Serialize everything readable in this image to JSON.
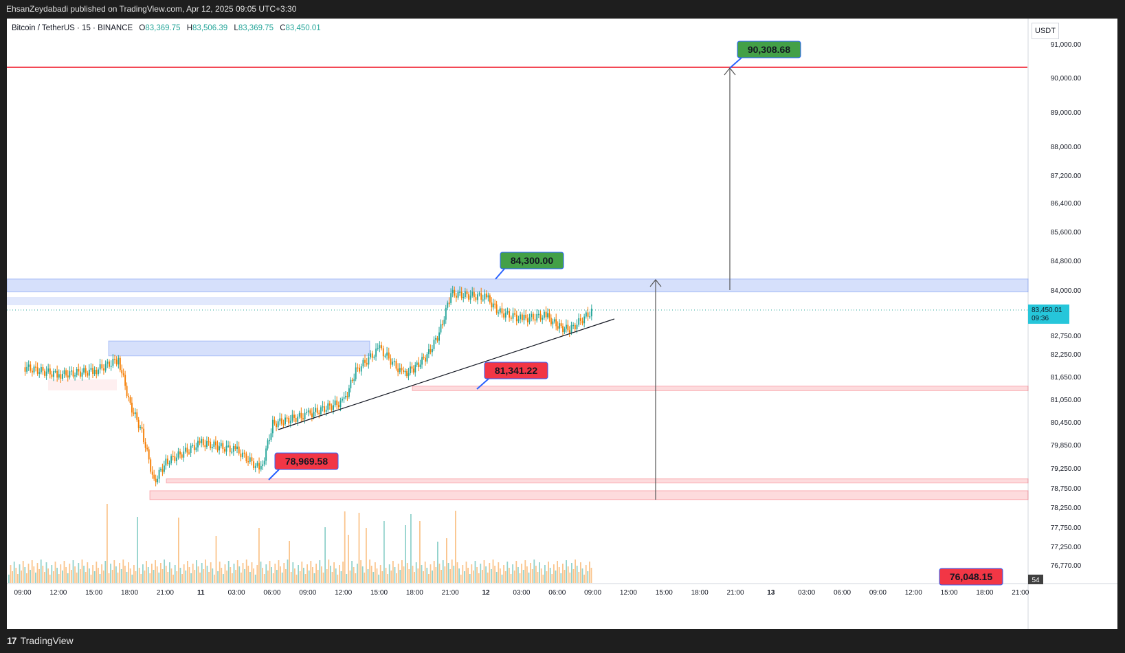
{
  "header": {
    "publish_line": "EhsanZeydabadi published on TradingView.com, Apr 12, 2025 09:05 UTC+3:30"
  },
  "legend": {
    "symbol": "Bitcoin / TetherUS · 15 · BINANCE",
    "open_label": "O",
    "open": "83,369.75",
    "high_label": "H",
    "high": "83,506.39",
    "low_label": "L",
    "low": "83,369.75",
    "close_label": "C",
    "close": "83,450.01"
  },
  "axis_unit": "USDT",
  "footer": {
    "brand": "TradingView",
    "logo": "17"
  },
  "chart_data": {
    "type": "candlestick",
    "symbol": "Bitcoin / TetherUS",
    "interval": "15",
    "exchange": "BINANCE",
    "y_ticks": [
      "91,000.00",
      "90,000.00",
      "89,000.00",
      "88,000.00",
      "87,200.00",
      "86,400.00",
      "85,600.00",
      "84,800.00",
      "84,000.00",
      "82,750.00",
      "82,250.00",
      "81,650.00",
      "81,050.00",
      "80,450.00",
      "79,850.00",
      "79,250.00",
      "78,750.00",
      "78,250.00",
      "77,750.00",
      "77,250.00",
      "76,770.00"
    ],
    "x_ticks": [
      "09:00",
      "12:00",
      "15:00",
      "18:00",
      "21:00",
      "11",
      "03:00",
      "06:00",
      "09:00",
      "12:00",
      "15:00",
      "18:00",
      "21:00",
      "12",
      "03:00",
      "06:00",
      "09:00",
      "12:00",
      "15:00",
      "18:00",
      "21:00",
      "13",
      "03:00",
      "06:00",
      "09:00",
      "12:00",
      "15:00",
      "18:00",
      "21:00"
    ],
    "x_ticks_bold": [
      "11",
      "12",
      "13"
    ],
    "current_price": {
      "value": "83,450.01",
      "countdown": "09:36"
    },
    "volume_badge": "54",
    "price_labels": [
      {
        "text": "90,308.68",
        "color": "#43a047"
      },
      {
        "text": "84,300.00",
        "color": "#43a047"
      },
      {
        "text": "81,341.22",
        "color": "#f23645"
      },
      {
        "text": "78,969.58",
        "color": "#f23645"
      },
      {
        "text": "76,048.15",
        "color": "#f23645"
      }
    ],
    "resistance_line": 90308.68,
    "zones": [
      {
        "from": 83950,
        "to": 84300,
        "color": "blue"
      },
      {
        "from": 82200,
        "to": 82600,
        "color": "blue"
      },
      {
        "from": 81280,
        "to": 81400,
        "color": "red"
      },
      {
        "from": 78880,
        "to": 78980,
        "color": "red"
      },
      {
        "from": 78450,
        "to": 78680,
        "color": "red"
      }
    ],
    "close_path": [
      [
        "09:00",
        81900
      ],
      [
        "12:00",
        81700
      ],
      [
        "15:00",
        81800
      ],
      [
        "17:00",
        82100
      ],
      [
        "18:00",
        80900
      ],
      [
        "19:00",
        80200
      ],
      [
        "20:00",
        78900
      ],
      [
        "21:00",
        79400
      ],
      [
        "00:00",
        79900
      ],
      [
        "03:00",
        79700
      ],
      [
        "05:00",
        79200
      ],
      [
        "06:00",
        80400
      ],
      [
        "09:00",
        80650
      ],
      [
        "12:00",
        81000
      ],
      [
        "13:00",
        81800
      ],
      [
        "15:00",
        82400
      ],
      [
        "17:00",
        81700
      ],
      [
        "18:00",
        81900
      ],
      [
        "19:00",
        82200
      ],
      [
        "20:00",
        82800
      ],
      [
        "21:00",
        83900
      ],
      [
        "00:00",
        83800
      ],
      [
        "01:00",
        83400
      ],
      [
        "03:00",
        83200
      ],
      [
        "05:00",
        83300
      ],
      [
        "06:00",
        83000
      ],
      [
        "07:00",
        82900
      ],
      [
        "09:00",
        83450
      ]
    ],
    "colors": {
      "up": "#26a69a",
      "down": "#f57c00",
      "line": "#f23645"
    }
  }
}
